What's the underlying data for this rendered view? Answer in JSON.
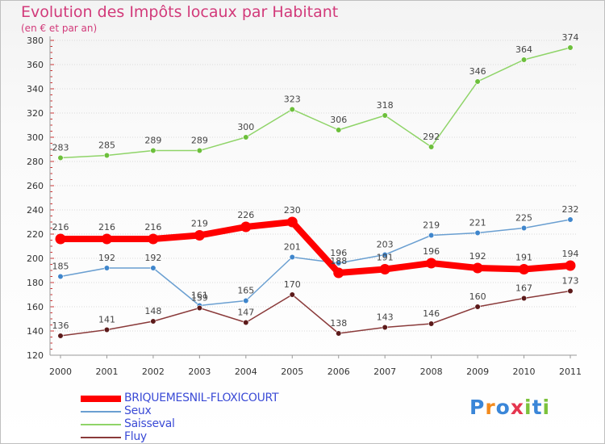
{
  "header": {
    "title": "Evolution des Impôts locaux par Habitant",
    "subtitle": "(en € et par an)"
  },
  "logo": {
    "letters": [
      "P",
      "r",
      "o",
      "x",
      "i",
      "t",
      "i"
    ],
    "colors": [
      "#3a86d8",
      "#f28a1d",
      "#3a86d8",
      "#e5364f",
      "#7cc23c",
      "#3a86d8",
      "#7cc23c"
    ]
  },
  "chart_data": {
    "type": "line",
    "x": [
      "2000",
      "2001",
      "2002",
      "2003",
      "2004",
      "2005",
      "2006",
      "2007",
      "2008",
      "2009",
      "2010",
      "2011"
    ],
    "yticks": [
      "120",
      "140",
      "160",
      "180",
      "200",
      "220",
      "240",
      "260",
      "280",
      "300",
      "320",
      "340",
      "360",
      "380"
    ],
    "ylim": [
      120,
      380
    ],
    "grid": "horizontal",
    "legend_position": "bottom-left",
    "series": [
      {
        "name": "Saisseval",
        "color": "#8fd468",
        "marker": "#6cbf3b",
        "values": [
          283,
          285,
          289,
          289,
          300,
          323,
          306,
          318,
          292,
          346,
          364,
          374
        ],
        "labels": [
          "283",
          "285",
          "289",
          "289",
          "300",
          "323",
          "306",
          "318",
          "292",
          "346",
          "364",
          "374"
        ]
      },
      {
        "name": "Seux",
        "color": "#6a9fd1",
        "marker": "#3f86cc",
        "values": [
          185,
          192,
          192,
          161,
          165,
          201,
          196,
          203,
          219,
          221,
          225,
          232
        ],
        "labels": [
          "185",
          "192",
          "192",
          "161",
          "165",
          "201",
          "196",
          "203",
          "219",
          "221",
          "225",
          "232"
        ]
      },
      {
        "name": "Fluy",
        "color": "#8a3a3a",
        "marker": "#5c1a1a",
        "values": [
          136,
          141,
          148,
          159,
          147,
          170,
          138,
          143,
          146,
          160,
          167,
          173
        ],
        "labels": [
          "136",
          "141",
          "148",
          "159",
          "147",
          "170",
          "138",
          "143",
          "146",
          "160",
          "167",
          "173"
        ]
      },
      {
        "name": "BRIQUEMESNIL-FLOXICOURT",
        "color": "#ff0000",
        "marker": "#ff0000",
        "values": [
          216,
          216,
          216,
          219,
          226,
          230,
          188,
          191,
          196,
          192,
          191,
          194
        ],
        "labels": [
          "216",
          "216",
          "216",
          "219",
          "226",
          "230",
          "188",
          "191",
          "196",
          "192",
          "191",
          "194"
        ]
      }
    ],
    "legend": [
      {
        "name": "BRIQUEMESNIL-FLOXICOURT",
        "color": "#ff0000",
        "thick": true
      },
      {
        "name": "Seux",
        "color": "#6a9fd1",
        "thick": false
      },
      {
        "name": "Saisseval",
        "color": "#8fd468",
        "thick": false
      },
      {
        "name": "Fluy",
        "color": "#8a3a3a",
        "thick": false
      }
    ]
  }
}
